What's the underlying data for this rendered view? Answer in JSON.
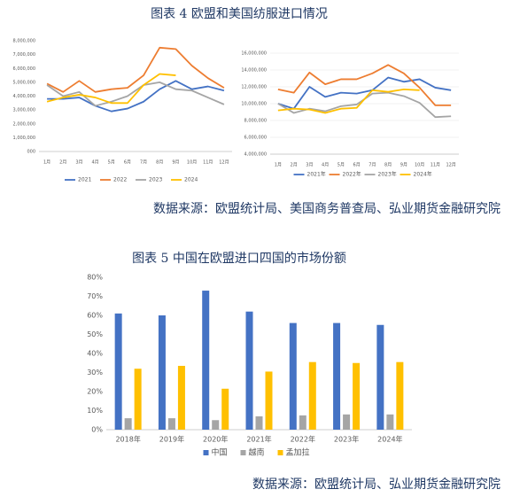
{
  "captions": {
    "figure4_title": "图表 4  欧盟和美国纺服进口情况",
    "figure4_source": "数据来源：欧盟统计局、美国商务普查局、弘业期货金融研究院",
    "figure5_title": "图表 5  中国在欧盟进口四国的市场份额",
    "figure5_source": "数据来源：欧盟统计局、弘业期货金融研究院"
  },
  "chart_data": [
    {
      "type": "line",
      "categories": [
        "1月",
        "2月",
        "3月",
        "4月",
        "5月",
        "6月",
        "7月",
        "8月",
        "9月",
        "10月",
        "11月",
        "12月"
      ],
      "series": [
        {
          "name": "2021",
          "color": "#4472c4",
          "values": [
            3800000,
            3800000,
            3900000,
            3300000,
            2900000,
            3100000,
            3600000,
            4500000,
            5100000,
            4500000,
            4700000,
            4400000
          ]
        },
        {
          "name": "2022",
          "color": "#ed7d31",
          "values": [
            4900000,
            4300000,
            5100000,
            4300000,
            4500000,
            4600000,
            5500000,
            7500000,
            7400000,
            6200000,
            5300000,
            4600000
          ]
        },
        {
          "name": "2023",
          "color": "#a5a5a5",
          "values": [
            4800000,
            4000000,
            4300000,
            3300000,
            3600000,
            4000000,
            4800000,
            5000000,
            4500000,
            4400000,
            3900000,
            3400000
          ]
        },
        {
          "name": "2024",
          "color": "#ffc000",
          "values": [
            3600000,
            3900000,
            4100000,
            3900000,
            3500000,
            3500000,
            4800000,
            5600000,
            5500000,
            null,
            null,
            null
          ]
        }
      ],
      "ylim": [
        0,
        8000000
      ],
      "yticks": [
        {
          "value": 0,
          "label": "000"
        },
        {
          "value": 1000000,
          "label": "1,000,000"
        },
        {
          "value": 2000000,
          "label": "2,000,000"
        },
        {
          "value": 3000000,
          "label": "3,000,000"
        },
        {
          "value": 4000000,
          "label": "4,000,000"
        },
        {
          "value": 5000000,
          "label": "5,000,000"
        },
        {
          "value": 6000000,
          "label": "6,000,000"
        },
        {
          "value": 7000000,
          "label": "7,000,000"
        },
        {
          "value": 8000000,
          "label": "8,000,000"
        }
      ],
      "grid": false,
      "legend": "bottom"
    },
    {
      "type": "line",
      "categories": [
        "1月",
        "2月",
        "3月",
        "4月",
        "5月",
        "6月",
        "7月",
        "8月",
        "9月",
        "10月",
        "11月",
        "12月"
      ],
      "series": [
        {
          "name": "2021年",
          "color": "#4472c4",
          "values": [
            10000000,
            9400000,
            12000000,
            10800000,
            11300000,
            11200000,
            11600000,
            13100000,
            12600000,
            12900000,
            11900000,
            11600000
          ]
        },
        {
          "name": "2022年",
          "color": "#ed7d31",
          "values": [
            11700000,
            11300000,
            13700000,
            12300000,
            12900000,
            12900000,
            13600000,
            14600000,
            13600000,
            11900000,
            9800000,
            9800000
          ]
        },
        {
          "name": "2023年",
          "color": "#a5a5a5",
          "values": [
            10000000,
            8900000,
            9400000,
            9100000,
            9700000,
            9900000,
            11200000,
            11300000,
            10900000,
            10100000,
            8400000,
            8500000
          ]
        },
        {
          "name": "2024年",
          "color": "#ffc000",
          "values": [
            9200000,
            9400000,
            9300000,
            8900000,
            9400000,
            9500000,
            11600000,
            11400000,
            11700000,
            11600000,
            null,
            null
          ]
        }
      ],
      "ylim": [
        4000000,
        16000000
      ],
      "yticks": [
        {
          "value": 4000000,
          "label": "4,000,000"
        },
        {
          "value": 6000000,
          "label": "6,000,000"
        },
        {
          "value": 8000000,
          "label": "8,000,000"
        },
        {
          "value": 10000000,
          "label": "10,000,000"
        },
        {
          "value": 12000000,
          "label": "12,000,000"
        },
        {
          "value": 14000000,
          "label": "14,000,000"
        },
        {
          "value": 16000000,
          "label": "16,000,000"
        }
      ],
      "grid": true,
      "legend": "bottom"
    },
    {
      "type": "bar",
      "categories": [
        "2018年",
        "2019年",
        "2020年",
        "2021年",
        "2022年",
        "2023年",
        "2024年"
      ],
      "series": [
        {
          "name": "中国",
          "color": "#4472c4",
          "values": [
            61,
            60,
            73,
            62,
            56,
            56,
            55
          ]
        },
        {
          "name": "越南",
          "color": "#a5a5a5",
          "values": [
            6,
            6,
            5,
            7,
            7.5,
            8,
            8
          ]
        },
        {
          "name": "孟加拉",
          "color": "#ffc000",
          "values": [
            32,
            33.5,
            21.5,
            30.5,
            35.5,
            35,
            35.5
          ]
        }
      ],
      "ylim": [
        0,
        80
      ],
      "yticks": [
        {
          "value": 0,
          "label": "0%"
        },
        {
          "value": 10,
          "label": "10%"
        },
        {
          "value": 20,
          "label": "20%"
        },
        {
          "value": 30,
          "label": "30%"
        },
        {
          "value": 40,
          "label": "40%"
        },
        {
          "value": 50,
          "label": "50%"
        },
        {
          "value": 60,
          "label": "60%"
        },
        {
          "value": 70,
          "label": "70%"
        },
        {
          "value": 80,
          "label": "80%"
        }
      ],
      "grid": false,
      "legend": "bottom"
    }
  ]
}
